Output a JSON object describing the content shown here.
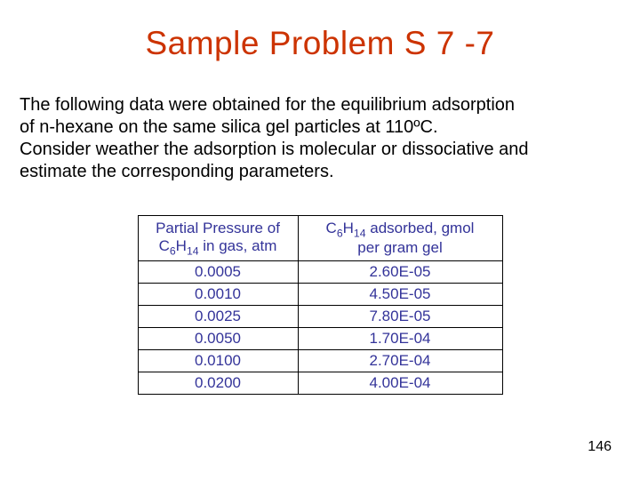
{
  "title": {
    "text": "Sample Problem S 7 -7",
    "color": "#cc3300"
  },
  "body": {
    "lines": [
      "The following data were obtained for the equilibrium adsorption",
      "of n-hexane on the same silica gel particles at 110ºC.",
      "Consider weather the adsorption is molecular or dissociative and",
      "estimate the corresponding parameters."
    ],
    "color": "#000000"
  },
  "table": {
    "header_col1_line1": "Partial Pressure of",
    "header_col1_line2_prefix": "C",
    "header_col1_line2_sub1": "6",
    "header_col1_line2_mid": "H",
    "header_col1_line2_sub2": "14",
    "header_col1_line2_suffix": " in gas, atm",
    "header_col2_prefix": "C",
    "header_col2_sub1": "6",
    "header_col2_mid": "H",
    "header_col2_sub2": "14",
    "header_col2_suffix": " adsorbed, gmol",
    "header_col2_line2": "per gram gel",
    "text_color": "#333399",
    "border_color": "#000000",
    "rows": [
      {
        "p": "0.0005",
        "q": "2.60E-05"
      },
      {
        "p": "0.0010",
        "q": "4.50E-05"
      },
      {
        "p": "0.0025",
        "q": "7.80E-05"
      },
      {
        "p": "0.0050",
        "q": "1.70E-04"
      },
      {
        "p": "0.0100",
        "q": "2.70E-04"
      },
      {
        "p": "0.0200",
        "q": "4.00E-04"
      }
    ]
  },
  "page_number": "146"
}
